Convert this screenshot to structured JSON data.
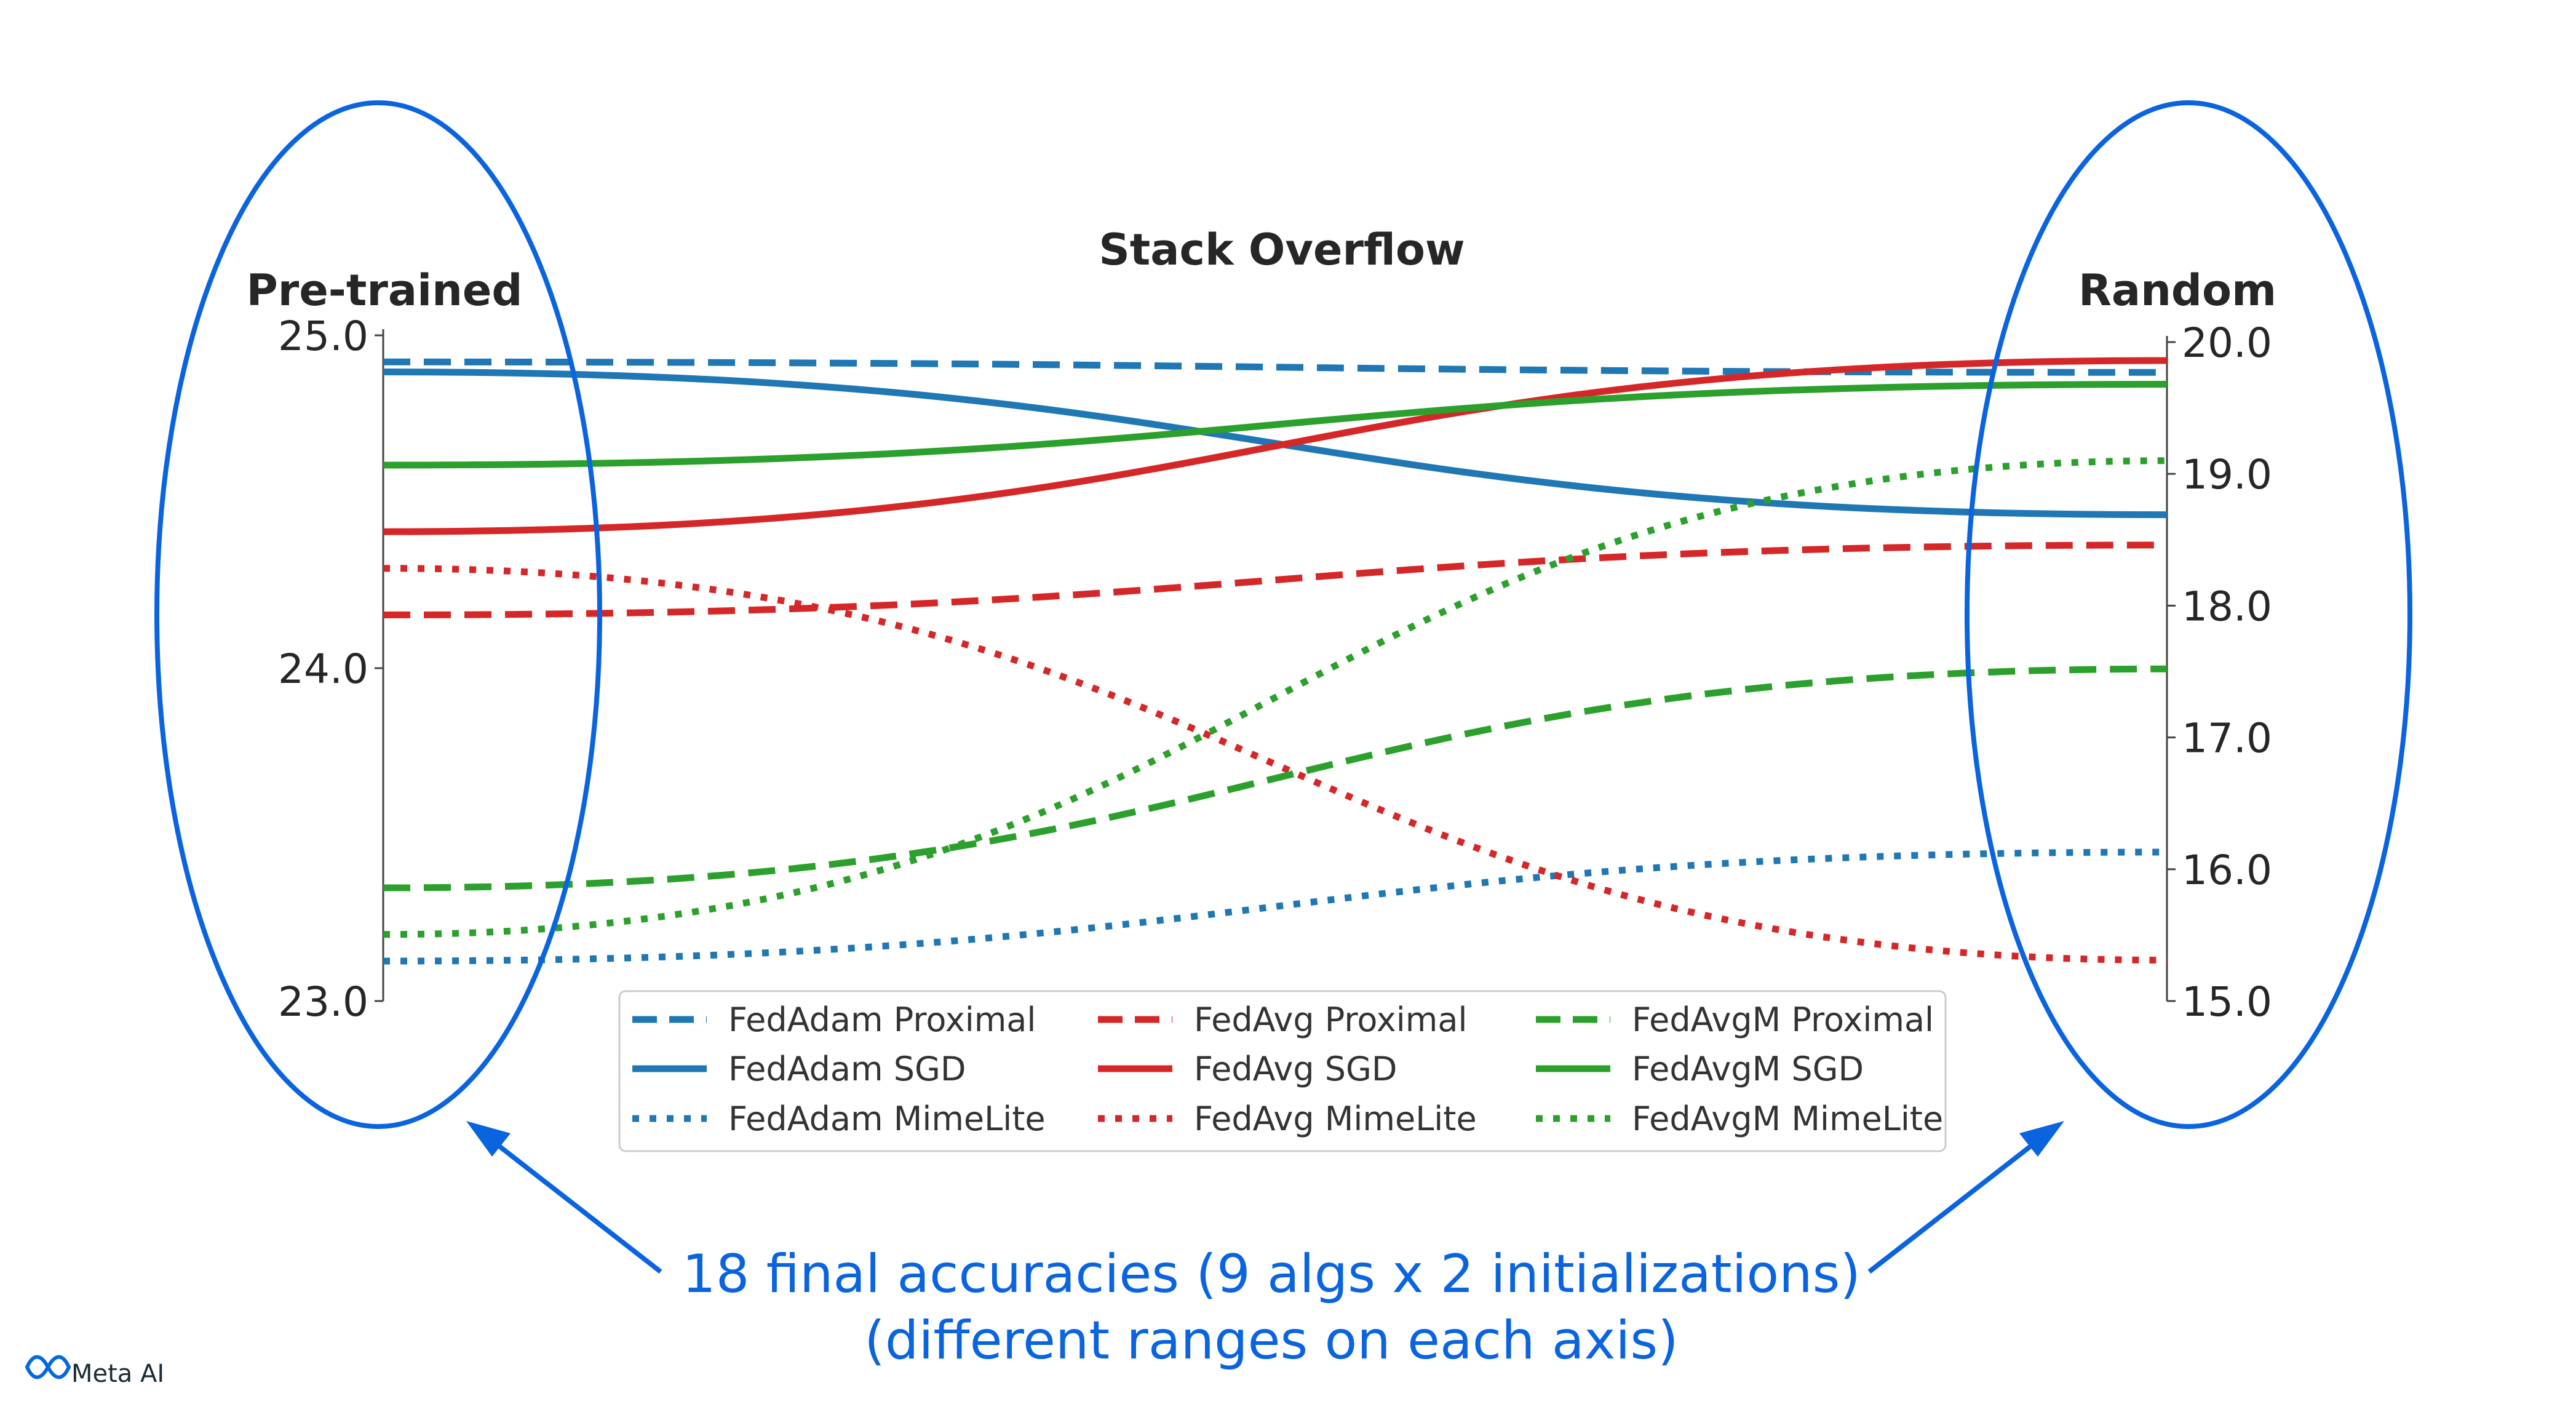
{
  "chart_data": {
    "type": "line",
    "title": "Stack Overflow",
    "axes": [
      {
        "label": "Pre-trained",
        "side": "left",
        "ylim": [
          23.0,
          25.0
        ],
        "ticks": [
          "23.0",
          "24.0",
          "25.0"
        ]
      },
      {
        "label": "Random",
        "side": "right",
        "ylim": [
          15.0,
          20.0
        ],
        "ticks": [
          "15.0",
          "16.0",
          "17.0",
          "18.0",
          "19.0",
          "20.0"
        ]
      }
    ],
    "legend_placement": "bottom-center",
    "grid": false,
    "series": [
      {
        "name": "FedAdam Proximal",
        "color": "#1f77b4",
        "style": "dashed",
        "values": [
          24.92,
          19.77
        ]
      },
      {
        "name": "FedAdam SGD",
        "color": "#1f77b4",
        "style": "solid",
        "values": [
          24.89,
          18.69
        ]
      },
      {
        "name": "FedAdam MimeLite",
        "color": "#1f77b4",
        "style": "dotted",
        "values": [
          23.12,
          16.13
        ]
      },
      {
        "name": "FedAvg Proximal",
        "color": "#d62728",
        "style": "dashed",
        "values": [
          24.16,
          18.46
        ]
      },
      {
        "name": "FedAvg SGD",
        "color": "#d62728",
        "style": "solid",
        "values": [
          24.41,
          19.86
        ]
      },
      {
        "name": "FedAvg MimeLite",
        "color": "#d62728",
        "style": "dotted",
        "values": [
          24.3,
          15.31
        ]
      },
      {
        "name": "FedAvgM Proximal",
        "color": "#2ca02c",
        "style": "dashed",
        "values": [
          23.34,
          17.52
        ]
      },
      {
        "name": "FedAvgM SGD",
        "color": "#2ca02c",
        "style": "solid",
        "values": [
          24.61,
          19.68
        ]
      },
      {
        "name": "FedAvgM MimeLite",
        "color": "#2ca02c",
        "style": "dotted",
        "values": [
          23.2,
          19.1
        ]
      }
    ]
  },
  "annotation": {
    "line1": "18 final accuracies (9 algs x 2 initializations)",
    "line2": "(different ranges on each axis)",
    "color": "#0a64e0"
  },
  "branding": {
    "logo_text": "Meta AI"
  }
}
